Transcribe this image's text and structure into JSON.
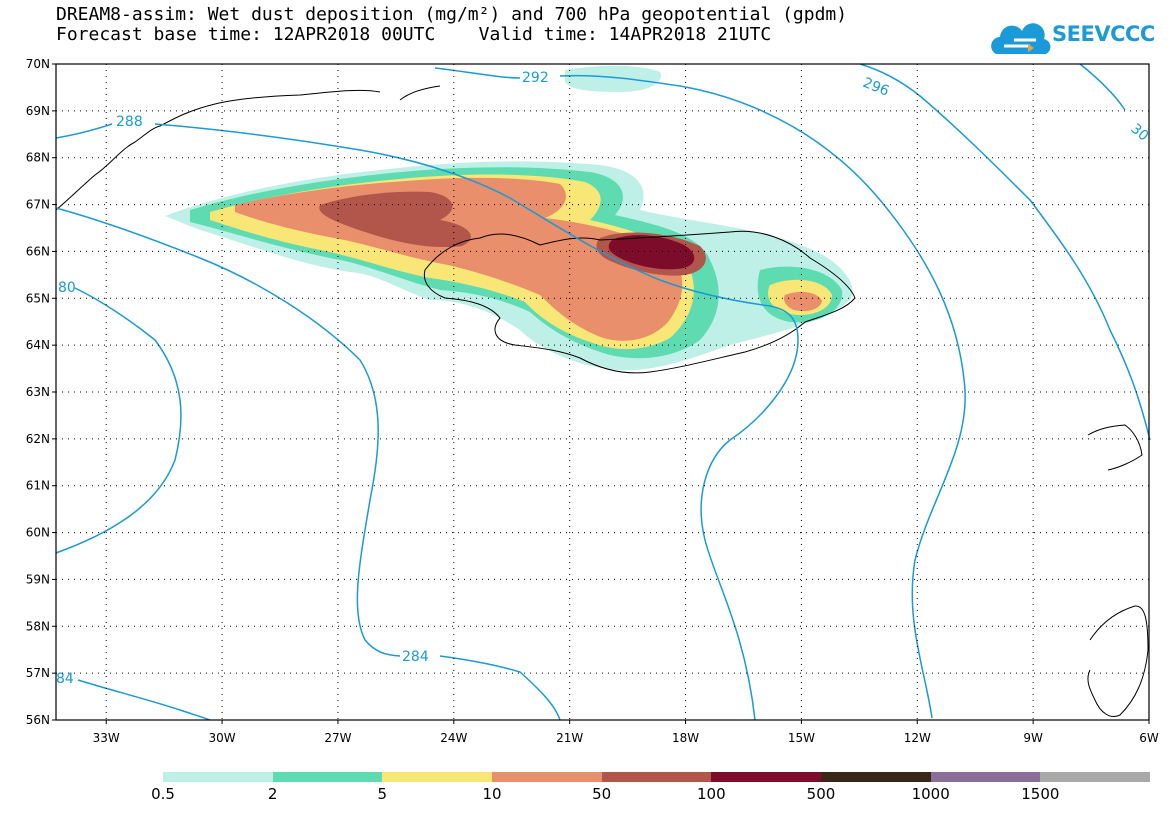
{
  "title": {
    "line1": "DREAM8-assim: Wet dust deposition (mg/m²) and 700 hPa geopotential (gpdm)",
    "line2": "Forecast base time: 12APR2018 00UTC    Valid time: 14APR2018 21UTC"
  },
  "logo": {
    "text": "SEEVCCC",
    "icon": "cloud-logo-icon"
  },
  "map": {
    "lat_labels": [
      "70N",
      "69N",
      "68N",
      "67N",
      "66N",
      "65N",
      "64N",
      "63N",
      "62N",
      "61N",
      "60N",
      "59N",
      "58N",
      "57N",
      "56N"
    ],
    "lon_labels": [
      "33W",
      "30W",
      "27W",
      "24W",
      "21W",
      "18W",
      "15W",
      "12W",
      "9W",
      "6W"
    ],
    "contour_labels": [
      "292",
      "296",
      "30",
      "288",
      "80",
      "284",
      "84"
    ],
    "contour_color": "#1a9ad6"
  },
  "legend": {
    "colors": [
      "#bff0e8",
      "#5fdbb2",
      "#f8e677",
      "#ea8f6b",
      "#b2564c",
      "#7d0b2a",
      "#3a2616",
      "#8c6c99",
      "#a8a8a8"
    ],
    "labels": [
      "0.5",
      "2",
      "5",
      "10",
      "50",
      "100",
      "500",
      "1000",
      "1500"
    ]
  }
}
